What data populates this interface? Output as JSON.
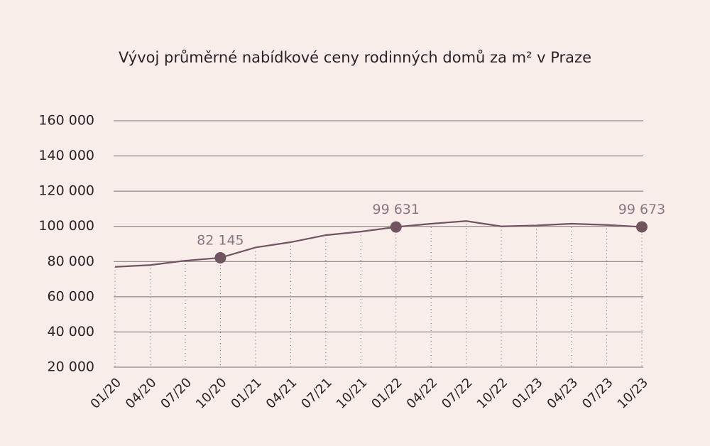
{
  "chart_data": {
    "type": "line",
    "title": "Vývoj průměrné nabídkové ceny rodinných domů za m² v Praze",
    "categories": [
      "01/20",
      "04/20",
      "07/20",
      "10/20",
      "01/21",
      "04/21",
      "07/21",
      "10/21",
      "01/22",
      "04/22",
      "07/22",
      "10/22",
      "01/23",
      "04/23",
      "07/23",
      "10/23"
    ],
    "series": [
      {
        "color": "#6e5560",
        "values": [
          77000,
          78000,
          80500,
          82145,
          88000,
          91000,
          95000,
          97000,
          99631,
          101500,
          103000,
          100000,
          100500,
          101500,
          100800,
          99673
        ],
        "value_labels": [
          null,
          null,
          null,
          "82 145",
          null,
          null,
          null,
          null,
          "99 631",
          null,
          null,
          null,
          null,
          null,
          null,
          "99 673"
        ]
      }
    ],
    "ylim": [
      20000,
      160000
    ],
    "yticks": [
      {
        "value": 20000,
        "label": "20 000"
      },
      {
        "value": 40000,
        "label": "40 000"
      },
      {
        "value": 60000,
        "label": "60 000"
      },
      {
        "value": 80000,
        "label": "80 000"
      },
      {
        "value": 100000,
        "label": "100 000"
      },
      {
        "value": 120000,
        "label": "120 000"
      },
      {
        "value": 140000,
        "label": "140 000"
      },
      {
        "value": 160000,
        "label": "160 000"
      }
    ],
    "grid": true
  }
}
